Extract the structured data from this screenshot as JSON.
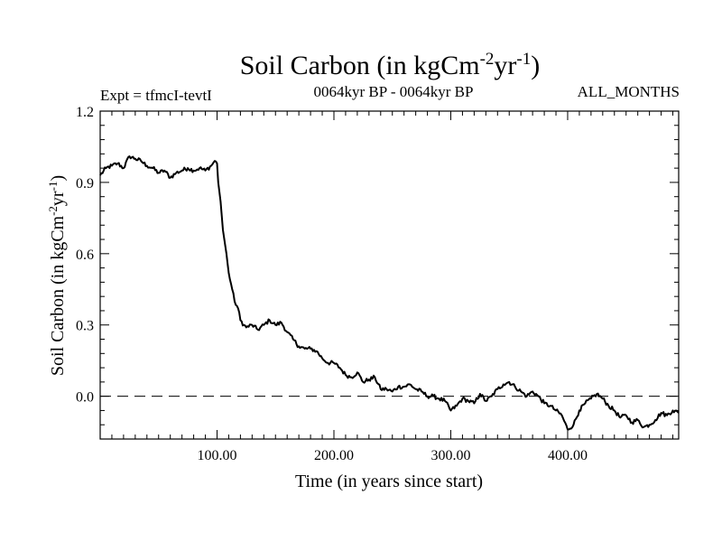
{
  "chart_data": {
    "type": "line",
    "title": {
      "main": "Soil Carbon (in kgCm",
      "sup1": "-2",
      "mid": "yr",
      "sup2": "-1",
      "end": ")"
    },
    "experiment_label": "Expt = tfmcI-tevtI",
    "period_label": "0064kyr BP - 0064kyr BP",
    "season_label": "ALL_MONTHS",
    "xlabel": "Time (in years since start)",
    "ylabel": {
      "main": "Soil Carbon (in kgCm",
      "sup1": "-2",
      "mid": "yr",
      "sup2": "-1",
      "end": ")"
    },
    "xlim": [
      0,
      495
    ],
    "ylim": [
      -0.18,
      1.2
    ],
    "xticks": [
      {
        "value": 100,
        "label": "100.00"
      },
      {
        "value": 200,
        "label": "200.00"
      },
      {
        "value": 300,
        "label": "300.00"
      },
      {
        "value": 400,
        "label": "400.00"
      }
    ],
    "yticks": [
      {
        "value": 1.2,
        "label": "1.2"
      },
      {
        "value": 0.9,
        "label": "0.9"
      },
      {
        "value": 0.6,
        "label": "0.6"
      },
      {
        "value": 0.3,
        "label": "0.3"
      },
      {
        "value": 0.0,
        "label": "0.0"
      }
    ],
    "reference_line": {
      "y": 0.0,
      "style": "dashed"
    },
    "series": [
      {
        "name": "Soil Carbon",
        "x": [
          0,
          5,
          10,
          15,
          20,
          25,
          30,
          35,
          40,
          45,
          50,
          55,
          60,
          65,
          70,
          75,
          80,
          85,
          90,
          95,
          98,
          100,
          101,
          103,
          105,
          108,
          110,
          113,
          115,
          118,
          120,
          123,
          125,
          130,
          135,
          140,
          145,
          150,
          155,
          160,
          165,
          170,
          175,
          180,
          185,
          190,
          195,
          200,
          205,
          210,
          215,
          220,
          225,
          230,
          235,
          240,
          245,
          250,
          255,
          260,
          265,
          270,
          275,
          280,
          285,
          290,
          295,
          300,
          305,
          310,
          315,
          320,
          325,
          330,
          335,
          340,
          345,
          350,
          355,
          360,
          365,
          370,
          375,
          380,
          385,
          390,
          395,
          400,
          405,
          410,
          415,
          420,
          425,
          430,
          435,
          440,
          445,
          450,
          455,
          460,
          465,
          470,
          475,
          480,
          485,
          490,
          495
        ],
        "y": [
          0.93,
          0.96,
          0.97,
          0.98,
          0.96,
          1.01,
          1.0,
          0.99,
          0.97,
          0.96,
          0.94,
          0.95,
          0.92,
          0.94,
          0.95,
          0.96,
          0.95,
          0.96,
          0.95,
          0.97,
          0.99,
          0.98,
          0.9,
          0.82,
          0.7,
          0.6,
          0.52,
          0.45,
          0.4,
          0.37,
          0.32,
          0.3,
          0.29,
          0.3,
          0.28,
          0.3,
          0.32,
          0.3,
          0.31,
          0.27,
          0.24,
          0.21,
          0.2,
          0.2,
          0.19,
          0.16,
          0.14,
          0.14,
          0.12,
          0.09,
          0.08,
          0.1,
          0.06,
          0.07,
          0.08,
          0.03,
          0.03,
          0.02,
          0.04,
          0.04,
          0.05,
          0.03,
          0.02,
          0.0,
          0.0,
          -0.01,
          -0.02,
          -0.06,
          -0.04,
          -0.01,
          -0.02,
          -0.03,
          0.01,
          -0.02,
          0.0,
          0.03,
          0.05,
          0.06,
          0.04,
          0.02,
          0.0,
          0.02,
          0.0,
          -0.03,
          -0.04,
          -0.06,
          -0.08,
          -0.14,
          -0.12,
          -0.06,
          -0.03,
          -0.01,
          0.01,
          -0.01,
          -0.04,
          -0.06,
          -0.09,
          -0.08,
          -0.11,
          -0.1,
          -0.13,
          -0.12,
          -0.1,
          -0.07,
          -0.08,
          -0.06,
          -0.07
        ]
      }
    ]
  }
}
